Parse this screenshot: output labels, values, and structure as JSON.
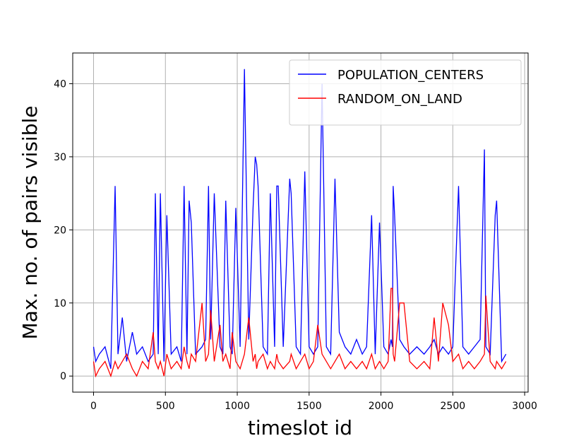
{
  "chart_data": {
    "type": "line",
    "x_label": "timeslot id",
    "y_label": "Max. no. of pairs visible",
    "x": [
      0,
      15,
      40,
      80,
      120,
      150,
      170,
      200,
      230,
      270,
      300,
      340,
      380,
      415,
      430,
      450,
      465,
      490,
      510,
      540,
      580,
      610,
      630,
      650,
      665,
      680,
      710,
      755,
      780,
      800,
      815,
      840,
      880,
      900,
      920,
      950,
      965,
      990,
      1020,
      1050,
      1080,
      1110,
      1125,
      1135,
      1145,
      1180,
      1210,
      1230,
      1260,
      1275,
      1285,
      1320,
      1365,
      1375,
      1410,
      1440,
      1470,
      1500,
      1530,
      1560,
      1590,
      1620,
      1650,
      1680,
      1710,
      1750,
      1790,
      1830,
      1870,
      1900,
      1935,
      1960,
      1990,
      2020,
      2050,
      2070,
      2080,
      2085,
      2095,
      2130,
      2160,
      2200,
      2250,
      2300,
      2340,
      2370,
      2400,
      2430,
      2470,
      2500,
      2540,
      2570,
      2610,
      2650,
      2690,
      2720,
      2730,
      2760,
      2795,
      2805,
      2840,
      2870
    ],
    "series": [
      {
        "name": "POPULATION_CENTERS",
        "color": "#0000ff",
        "values": [
          4,
          2,
          3,
          4,
          1,
          26,
          3,
          8,
          2,
          6,
          3,
          4,
          2,
          3,
          25,
          3,
          25,
          2,
          22,
          3,
          4,
          2,
          26,
          3,
          24,
          21,
          3,
          4,
          5,
          26,
          5,
          25,
          4,
          3,
          24,
          4,
          3,
          23,
          4,
          42,
          5,
          23,
          30,
          29,
          26,
          4,
          3,
          25,
          4,
          26,
          26,
          4,
          27,
          25,
          4,
          3,
          28,
          4,
          3,
          4,
          40,
          4,
          3,
          27,
          6,
          4,
          3,
          5,
          3,
          4,
          22,
          3,
          21,
          4,
          3,
          5,
          4,
          26,
          22,
          5,
          4,
          3,
          4,
          3,
          4,
          5,
          3,
          4,
          3,
          4,
          26,
          4,
          3,
          4,
          5,
          31,
          4,
          3,
          22,
          24,
          2,
          3
        ]
      },
      {
        "name": "RANDOM_ON_LAND",
        "color": "#ff0000",
        "values": [
          2,
          0,
          1,
          2,
          0,
          2,
          1,
          2,
          3,
          1,
          0,
          2,
          1,
          6,
          2,
          1,
          2,
          0,
          3,
          1,
          2,
          1,
          4,
          2,
          1,
          3,
          2,
          10,
          2,
          3,
          9,
          2,
          7,
          2,
          3,
          1,
          6,
          2,
          1,
          3,
          8,
          2,
          3,
          1,
          2,
          3,
          1,
          2,
          1,
          3,
          2,
          1,
          2,
          3,
          1,
          2,
          3,
          1,
          2,
          7,
          3,
          2,
          1,
          2,
          3,
          1,
          2,
          1,
          2,
          1,
          3,
          1,
          2,
          1,
          2,
          12,
          12,
          3,
          2,
          10,
          10,
          2,
          1,
          2,
          1,
          8,
          2,
          10,
          7,
          2,
          3,
          1,
          2,
          1,
          2,
          3,
          11,
          2,
          1,
          2,
          1,
          2
        ]
      }
    ],
    "xlim": [
      -145,
      3024
    ],
    "ylim": [
      -2.2,
      44.2
    ],
    "xticks": [
      0,
      500,
      1000,
      1500,
      2000,
      2500,
      3000
    ],
    "yticks": [
      0,
      10,
      20,
      30,
      40
    ],
    "grid": true,
    "legend": "upper right"
  }
}
